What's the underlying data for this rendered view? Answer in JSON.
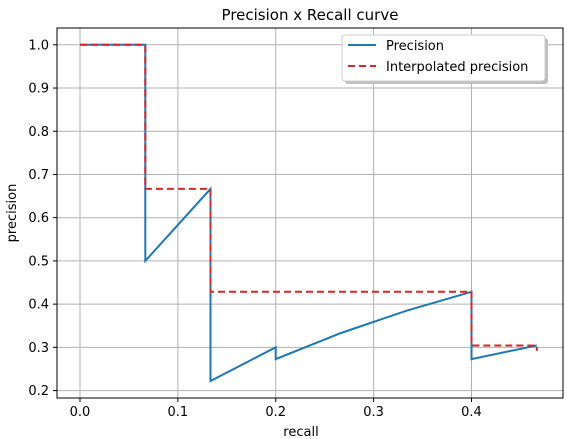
{
  "chart_data": {
    "type": "line",
    "title": "Precision x Recall curve",
    "xlabel": "recall",
    "ylabel": "precision",
    "xlim": [
      -0.0235,
      0.4935
    ],
    "ylim": [
      0.1828,
      1.0389
    ],
    "grid": true,
    "legend_position": "top-right",
    "x_ticks": [
      0.0,
      0.1,
      0.2,
      0.3,
      0.4
    ],
    "x_tick_labels": [
      "0.0",
      "0.1",
      "0.2",
      "0.3",
      "0.4"
    ],
    "y_ticks": [
      0.2,
      0.3,
      0.4,
      0.5,
      0.6,
      0.7,
      0.8,
      0.9,
      1.0
    ],
    "y_tick_labels": [
      "0.2",
      "0.3",
      "0.4",
      "0.5",
      "0.6",
      "0.7",
      "0.8",
      "0.9",
      "1.0"
    ],
    "series": [
      {
        "name": "Precision",
        "color": "#1f77b4",
        "style": "solid",
        "x": [
          0.0,
          0.0667,
          0.0667,
          0.1333,
          0.1333,
          0.2,
          0.2,
          0.2667,
          0.3333,
          0.4,
          0.4,
          0.4667
        ],
        "y": [
          1.0,
          1.0,
          0.5,
          0.6667,
          0.2222,
          0.3,
          0.2727,
          0.3333,
          0.3846,
          0.4286,
          0.2727,
          0.3043
        ]
      },
      {
        "name": "Interpolated precision",
        "color": "#d62728",
        "style": "dashed",
        "x": [
          0.0,
          0.0667,
          0.0667,
          0.1333,
          0.1333,
          0.4,
          0.4,
          0.4667,
          0.4667
        ],
        "y": [
          1.0,
          1.0,
          0.6667,
          0.6667,
          0.4286,
          0.4286,
          0.3043,
          0.3043,
          0.2917
        ]
      }
    ]
  }
}
